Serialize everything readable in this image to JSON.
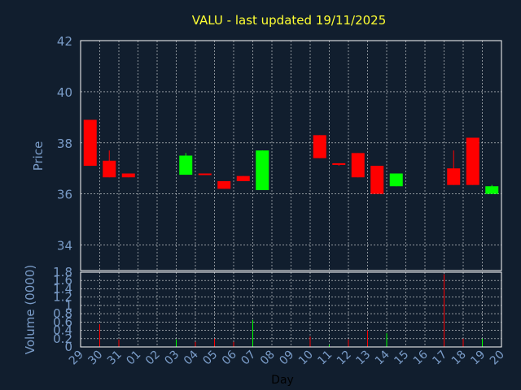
{
  "chart_data": [
    {
      "type": "candlestick",
      "title": "VALU - last updated 19/11/2025",
      "ylabel": "Price",
      "ylim": [
        33,
        42
      ],
      "yticks": [
        34,
        36,
        38,
        40,
        42
      ],
      "grid": true,
      "up_color": "#00ff00",
      "down_color": "#ff0000",
      "days": [
        "29",
        "30",
        "31",
        "01",
        "02",
        "03",
        "04",
        "05",
        "06",
        "07",
        "08",
        "09",
        "10",
        "11",
        "12",
        "13",
        "14",
        "15",
        "16",
        "17",
        "18",
        "19",
        "20"
      ],
      "candles": [
        {
          "day": 0,
          "open": 38.9,
          "close": 37.1,
          "high": 38.9,
          "low": 37.1
        },
        {
          "day": 1,
          "open": 37.3,
          "close": 36.65,
          "high": 37.7,
          "low": 36.65
        },
        {
          "day": 2,
          "open": 36.8,
          "close": 36.65,
          "high": 36.8,
          "low": 36.65
        },
        {
          "day": 5,
          "open": 36.75,
          "close": 37.5,
          "high": 37.6,
          "low": 36.75
        },
        {
          "day": 6,
          "open": 36.8,
          "close": 36.75,
          "high": 36.8,
          "low": 36.75
        },
        {
          "day": 7,
          "open": 36.5,
          "close": 36.2,
          "high": 36.5,
          "low": 36.2
        },
        {
          "day": 8,
          "open": 36.7,
          "close": 36.5,
          "high": 36.7,
          "low": 36.5
        },
        {
          "day": 9,
          "open": 36.15,
          "close": 37.7,
          "high": 37.7,
          "low": 36.15
        },
        {
          "day": 12,
          "open": 38.3,
          "close": 37.4,
          "high": 38.3,
          "low": 37.4
        },
        {
          "day": 13,
          "open": 37.2,
          "close": 37.15,
          "high": 37.2,
          "low": 37.1
        },
        {
          "day": 14,
          "open": 37.6,
          "close": 36.65,
          "high": 37.6,
          "low": 36.65
        },
        {
          "day": 15,
          "open": 37.1,
          "close": 36.0,
          "high": 37.1,
          "low": 36.0
        },
        {
          "day": 16,
          "open": 36.3,
          "close": 36.8,
          "high": 36.8,
          "low": 36.3
        },
        {
          "day": 19,
          "open": 37.0,
          "close": 36.35,
          "high": 37.7,
          "low": 36.35
        },
        {
          "day": 20,
          "open": 38.2,
          "close": 36.35,
          "high": 38.2,
          "low": 36.35
        },
        {
          "day": 21,
          "open": 36.0,
          "close": 36.3,
          "high": 36.35,
          "low": 36.0
        }
      ]
    },
    {
      "type": "bar",
      "ylabel": "Volume (0000)",
      "xlabel": "Day",
      "ylim": [
        0,
        1.8
      ],
      "yticks": [
        "0",
        "0.2",
        "0.4",
        "0.6",
        "0.8",
        "1",
        "1.2",
        "1.4",
        "1.6",
        "1.8"
      ],
      "grid": true,
      "bars": [
        {
          "day": 1,
          "value": 0.55,
          "color": "#ff0000"
        },
        {
          "day": 2,
          "value": 0.18,
          "color": "#ff0000"
        },
        {
          "day": 5,
          "value": 0.18,
          "color": "#00ff00"
        },
        {
          "day": 6,
          "value": 0.12,
          "color": "#ff0000"
        },
        {
          "day": 7,
          "value": 0.2,
          "color": "#ff0000"
        },
        {
          "day": 8,
          "value": 0.12,
          "color": "#ff0000"
        },
        {
          "day": 9,
          "value": 0.65,
          "color": "#00ff00"
        },
        {
          "day": 12,
          "value": 0.25,
          "color": "#ff0000"
        },
        {
          "day": 13,
          "value": 0.05,
          "color": "#00ff00"
        },
        {
          "day": 14,
          "value": 0.18,
          "color": "#ff0000"
        },
        {
          "day": 15,
          "value": 0.4,
          "color": "#ff0000"
        },
        {
          "day": 16,
          "value": 0.33,
          "color": "#00ff00"
        },
        {
          "day": 19,
          "value": 1.75,
          "color": "#ff0000"
        },
        {
          "day": 20,
          "value": 0.2,
          "color": "#ff0000"
        },
        {
          "day": 21,
          "value": 0.2,
          "color": "#00ff00"
        }
      ]
    }
  ]
}
